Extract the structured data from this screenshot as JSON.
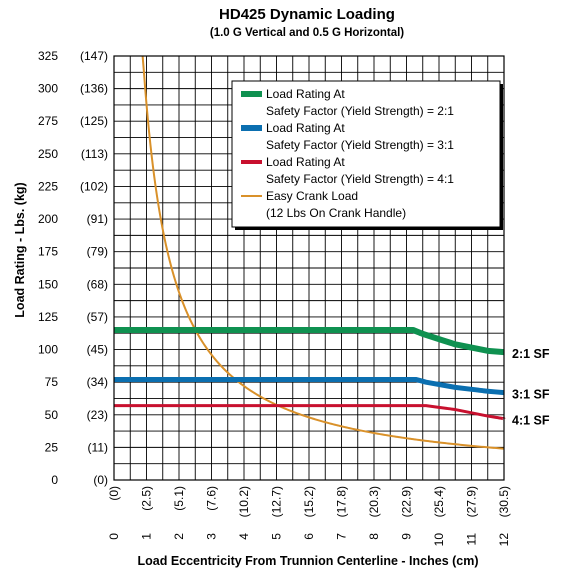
{
  "chart_data": {
    "type": "line",
    "title": "HD425 Dynamic Loading",
    "subtitle": "(1.0 G Vertical and 0.5 G Horizontal)",
    "xlabel": "Load Eccentricity From Trunnion Centerline - Inches (cm)",
    "ylabel": "Load Rating - Lbs. (kg)",
    "xlim": [
      0,
      12
    ],
    "ylim": [
      0,
      325
    ],
    "x_ticks": [
      0,
      1,
      2,
      3,
      4,
      5,
      6,
      7,
      8,
      9,
      10,
      11,
      12
    ],
    "x_tick_labels": [
      "0",
      "1",
      "2",
      "3",
      "4",
      "5",
      "6",
      "7",
      "8",
      "9",
      "10",
      "11",
      "12"
    ],
    "x_tick_labels_cm": [
      "(0)",
      "(2.5)",
      "(5.1)",
      "(7.6)",
      "(10.2)",
      "(12.7)",
      "(15.2)",
      "(17.8)",
      "(20.3)",
      "(22.9)",
      "(25.4)",
      "(27.9)",
      "(30.5)"
    ],
    "y_ticks": [
      0,
      25,
      50,
      75,
      100,
      125,
      150,
      175,
      200,
      225,
      250,
      275,
      300,
      325
    ],
    "y_tick_labels": [
      "0",
      "25",
      "50",
      "75",
      "100",
      "125",
      "150",
      "175",
      "200",
      "225",
      "250",
      "275",
      "300",
      "325"
    ],
    "y_tick_labels_kg": [
      "(0)",
      "(11)",
      "(23)",
      "(34)",
      "(45)",
      "(57)",
      "(68)",
      "(79)",
      "(91)",
      "(102)",
      "(113)",
      "(125)",
      "(136)",
      "(147)"
    ],
    "grid": true,
    "legend_position": "top-right",
    "legend": [
      {
        "line1": "Load Rating At",
        "line2": "Safety Factor (Yield Strength) = 2:1",
        "color": "#0f9150"
      },
      {
        "line1": "Load Rating At",
        "line2": "Safety Factor (Yield Strength) = 3:1",
        "color": "#0b6fb0"
      },
      {
        "line1": "Load Rating At",
        "line2": "Safety Factor (Yield Strength) = 4:1",
        "color": "#c8102e"
      },
      {
        "line1": "Easy Crank Load",
        "line2": "(12 Lbs On Crank Handle)",
        "color": "#d9912a"
      }
    ],
    "series": [
      {
        "label": "2:1 SF",
        "color": "#0f9150",
        "width": 6,
        "x": [
          0,
          9.2,
          9.5,
          10.5,
          11.5,
          12
        ],
        "y": [
          115,
          115,
          112,
          104,
          99,
          98
        ]
      },
      {
        "label": "3:1 SF",
        "color": "#0b6fb0",
        "width": 5,
        "x": [
          0,
          9.3,
          9.6,
          10.5,
          11.5,
          12
        ],
        "y": [
          77,
          77,
          75,
          71,
          68,
          67
        ]
      },
      {
        "label": "4:1 SF",
        "color": "#c8102e",
        "width": 3,
        "x": [
          0,
          9.6,
          10.5,
          11.5,
          12
        ],
        "y": [
          57,
          57,
          54,
          49,
          47
        ]
      },
      {
        "color": "#d9912a",
        "width": 2,
        "formula": "k/x",
        "k": 288,
        "x_start": 0.88,
        "x_end": 12
      }
    ]
  }
}
